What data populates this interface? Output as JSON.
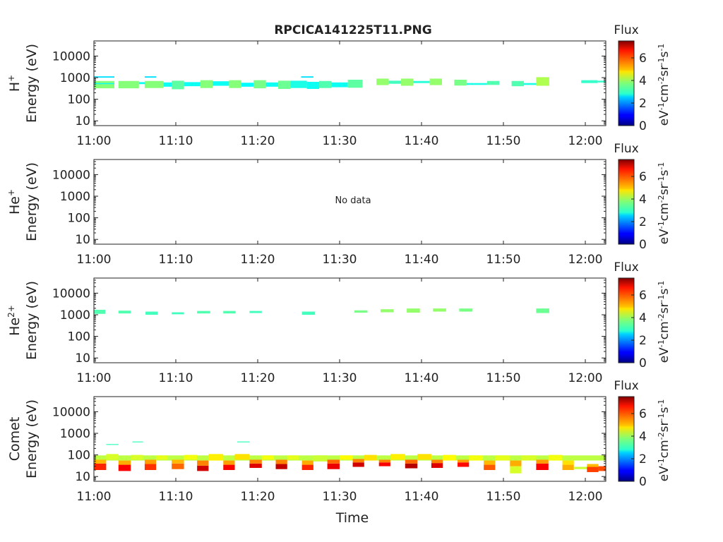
{
  "title": "RPCICA141225T11.PNG",
  "xlabel": "Time",
  "colorbar": {
    "title": "Flux",
    "label_parts": [
      "eV",
      "-1",
      "cm",
      "-2",
      "sr",
      "-1",
      "s",
      "-1"
    ],
    "ticks": [
      0,
      2,
      4,
      6
    ],
    "range": [
      0,
      7.5
    ],
    "colormap": "jet"
  },
  "chart_data": [
    {
      "type": "heatmap",
      "panel": "H+",
      "ylabel_species": "H",
      "ylabel_sup": "+",
      "ylabel_unit": "Energy (eV)",
      "x_ticks": [
        "11:00",
        "11:10",
        "11:20",
        "11:30",
        "11:40",
        "11:50",
        "12:00"
      ],
      "xlim_min": [
        0,
        62.5
      ],
      "y_ticks": [
        10,
        100,
        1000,
        10000
      ],
      "y_scale": "log",
      "ylim": [
        6,
        50000
      ],
      "no_data": false,
      "cells": [
        [
          0,
          2.5,
          320,
          700,
          3.8
        ],
        [
          0,
          2.5,
          500,
          560,
          2.9
        ],
        [
          0,
          2.5,
          1000,
          1150,
          2.6
        ],
        [
          3,
          5.5,
          320,
          700,
          3.8
        ],
        [
          5.5,
          8.5,
          500,
          620,
          2.9
        ],
        [
          6.2,
          7.6,
          1000,
          1150,
          2.6
        ],
        [
          6.2,
          8.5,
          330,
          700,
          3.8
        ],
        [
          8.5,
          11,
          380,
          600,
          2.9
        ],
        [
          9.5,
          11,
          290,
          720,
          3.5
        ],
        [
          11,
          13,
          400,
          620,
          2.9
        ],
        [
          13,
          14.5,
          330,
          760,
          3.8
        ],
        [
          14.5,
          16.5,
          420,
          680,
          2.9
        ],
        [
          16.5,
          18,
          330,
          760,
          3.8
        ],
        [
          18,
          19.5,
          380,
          580,
          2.8
        ],
        [
          19.5,
          21,
          320,
          760,
          3.7
        ],
        [
          21,
          22.5,
          380,
          600,
          2.9
        ],
        [
          22.5,
          24,
          300,
          720,
          3.6
        ],
        [
          24,
          26,
          330,
          720,
          3.0
        ],
        [
          25.3,
          26.8,
          1000,
          1150,
          2.6
        ],
        [
          26,
          27.5,
          300,
          640,
          2.9
        ],
        [
          27.5,
          29,
          330,
          700,
          3.4
        ],
        [
          29,
          31,
          360,
          600,
          2.9
        ],
        [
          31,
          32.8,
          340,
          800,
          3.5
        ],
        [
          34.5,
          36,
          450,
          900,
          3.9
        ],
        [
          36,
          37.5,
          520,
          720,
          3.3
        ],
        [
          37.5,
          39,
          420,
          900,
          3.9
        ],
        [
          39,
          41,
          560,
          700,
          3.1
        ],
        [
          41,
          42.5,
          450,
          900,
          3.9
        ],
        [
          44,
          45.5,
          430,
          800,
          3.7
        ],
        [
          45.5,
          48,
          460,
          560,
          3.0
        ],
        [
          48,
          49.5,
          460,
          700,
          3.4
        ],
        [
          51,
          52.5,
          400,
          700,
          3.4
        ],
        [
          52.5,
          54,
          460,
          560,
          3.0
        ],
        [
          54,
          55.6,
          420,
          1050,
          4.1
        ],
        [
          59.5,
          61.5,
          560,
          760,
          3.2
        ],
        [
          61.5,
          62.5,
          600,
          720,
          3.2
        ]
      ]
    },
    {
      "type": "heatmap",
      "panel": "He+",
      "ylabel_species": "He",
      "ylabel_sup": "+",
      "ylabel_unit": "Energy (eV)",
      "x_ticks": [
        "11:00",
        "11:10",
        "11:20",
        "11:30",
        "11:40",
        "11:50",
        "12:00"
      ],
      "xlim_min": [
        0,
        62.5
      ],
      "y_ticks": [
        10,
        100,
        1000,
        10000
      ],
      "y_scale": "log",
      "ylim": [
        6,
        50000
      ],
      "no_data": true,
      "no_data_text": "No data",
      "cells": []
    },
    {
      "type": "heatmap",
      "panel": "He2+",
      "ylabel_species": "He",
      "ylabel_sup": "2+",
      "ylabel_unit": "Energy (eV)",
      "x_ticks": [
        "11:00",
        "11:10",
        "11:20",
        "11:30",
        "11:40",
        "11:50",
        "12:00"
      ],
      "xlim_min": [
        0,
        62.5
      ],
      "y_ticks": [
        10,
        100,
        1000,
        10000
      ],
      "y_scale": "log",
      "ylim": [
        6,
        50000
      ],
      "no_data": false,
      "cells": [
        [
          0,
          1.4,
          1100,
          1700,
          3.4
        ],
        [
          3,
          4.5,
          1150,
          1550,
          3.4
        ],
        [
          6.3,
          7.8,
          1000,
          1400,
          3.3
        ],
        [
          9.5,
          11,
          1050,
          1300,
          3.3
        ],
        [
          12.6,
          14.2,
          1150,
          1500,
          3.4
        ],
        [
          15.8,
          17.3,
          1150,
          1500,
          3.4
        ],
        [
          19,
          20.5,
          1200,
          1500,
          3.3
        ],
        [
          25.4,
          27,
          1000,
          1400,
          3.3
        ],
        [
          31.8,
          33.4,
          1250,
          1600,
          3.7
        ],
        [
          35,
          36.6,
          1300,
          1800,
          3.9
        ],
        [
          38.2,
          39.8,
          1250,
          1950,
          3.9
        ],
        [
          41.4,
          43,
          1400,
          1950,
          3.9
        ],
        [
          44.6,
          46.2,
          1400,
          1950,
          3.7
        ],
        [
          54,
          55.6,
          1200,
          1950,
          3.6
        ]
      ]
    },
    {
      "type": "heatmap",
      "panel": "Comet",
      "ylabel_species": "Comet",
      "ylabel_sup": "",
      "ylabel_unit": "Energy (eV)",
      "x_ticks": [
        "11:00",
        "11:10",
        "11:20",
        "11:30",
        "11:40",
        "11:50",
        "12:00"
      ],
      "xlim_min": [
        0,
        62.5
      ],
      "y_ticks": [
        10,
        100,
        1000,
        10000
      ],
      "y_scale": "log",
      "ylim": [
        6,
        50000
      ],
      "no_data": false,
      "cells": [
        [
          0,
          62.5,
          55,
          95,
          4.2
        ],
        [
          1.5,
          3,
          290,
          320,
          3.3
        ],
        [
          4.7,
          6,
          380,
          420,
          3.3
        ],
        [
          17.5,
          19,
          380,
          420,
          3.3
        ],
        [
          0,
          1.5,
          20,
          40,
          6.3
        ],
        [
          0,
          1.5,
          40,
          60,
          5.2
        ],
        [
          1.5,
          3,
          60,
          110,
          4.4
        ],
        [
          3,
          4.5,
          18,
          35,
          6.6
        ],
        [
          3,
          4.5,
          35,
          55,
          5.3
        ],
        [
          4.5,
          6,
          60,
          100,
          4.4
        ],
        [
          6.2,
          7.6,
          20,
          38,
          6.2
        ],
        [
          6.2,
          7.6,
          38,
          60,
          5.4
        ],
        [
          7.6,
          9,
          60,
          95,
          4.5
        ],
        [
          9.5,
          11,
          22,
          40,
          5.8
        ],
        [
          9.5,
          11,
          40,
          60,
          5.2
        ],
        [
          11,
          12.6,
          60,
          100,
          4.6
        ],
        [
          12.6,
          14,
          18,
          32,
          6.9
        ],
        [
          12.6,
          14,
          32,
          55,
          5.6
        ],
        [
          14,
          15.8,
          55,
          110,
          4.8
        ],
        [
          15.8,
          17.2,
          20,
          35,
          6.6
        ],
        [
          15.8,
          17.2,
          35,
          55,
          5.4
        ],
        [
          17.2,
          19,
          60,
          110,
          4.9
        ],
        [
          19,
          20.5,
          25,
          40,
          6.8
        ],
        [
          19,
          20.5,
          40,
          60,
          5.6
        ],
        [
          20.5,
          22,
          60,
          95,
          4.6
        ],
        [
          22.2,
          23.6,
          22,
          38,
          7.0
        ],
        [
          22.2,
          23.6,
          38,
          60,
          5.6
        ],
        [
          23.6,
          25,
          60,
          95,
          4.5
        ],
        [
          25.4,
          26.8,
          20,
          35,
          6.3
        ],
        [
          25.4,
          26.8,
          35,
          55,
          5.3
        ],
        [
          26.8,
          28.5,
          50,
          95,
          4.3
        ],
        [
          28.5,
          30,
          22,
          40,
          6.7
        ],
        [
          28.5,
          30,
          40,
          60,
          5.8
        ],
        [
          30,
          31.6,
          60,
          95,
          4.7
        ],
        [
          31.6,
          33,
          28,
          45,
          6.9
        ],
        [
          31.6,
          33,
          45,
          65,
          5.6
        ],
        [
          33,
          34.5,
          55,
          100,
          4.9
        ],
        [
          34.8,
          36.2,
          30,
          45,
          6.6
        ],
        [
          34.8,
          36.2,
          45,
          60,
          5.6
        ],
        [
          36.2,
          38,
          60,
          110,
          4.8
        ],
        [
          38,
          39.5,
          24,
          40,
          7.1
        ],
        [
          38,
          39.5,
          40,
          60,
          5.8
        ],
        [
          39.5,
          41.2,
          60,
          110,
          4.9
        ],
        [
          41.2,
          42.6,
          25,
          42,
          6.8
        ],
        [
          41.2,
          42.6,
          42,
          60,
          5.6
        ],
        [
          42.6,
          44.2,
          55,
          100,
          4.7
        ],
        [
          44.4,
          45.8,
          28,
          45,
          6.5
        ],
        [
          44.4,
          45.8,
          45,
          60,
          5.4
        ],
        [
          45.8,
          47.5,
          55,
          95,
          4.6
        ],
        [
          47.6,
          49,
          20,
          35,
          5.9
        ],
        [
          47.6,
          49,
          35,
          55,
          5.2
        ],
        [
          49,
          50.8,
          55,
          95,
          4.5
        ],
        [
          50.8,
          52.2,
          14,
          30,
          4.4
        ],
        [
          50.8,
          52.2,
          30,
          55,
          5.3
        ],
        [
          52.2,
          54,
          55,
          95,
          4.4
        ],
        [
          54,
          55.5,
          20,
          40,
          6.6
        ],
        [
          54,
          55.5,
          40,
          60,
          5.4
        ],
        [
          55.5,
          57.2,
          55,
          100,
          4.6
        ],
        [
          57.2,
          58.6,
          20,
          35,
          5.3
        ],
        [
          57.2,
          58.6,
          35,
          55,
          4.9
        ],
        [
          58.6,
          60.2,
          22,
          28,
          4.3
        ],
        [
          60.2,
          61.6,
          16,
          28,
          6.1
        ],
        [
          60.2,
          61.6,
          28,
          38,
          5.2
        ],
        [
          61.6,
          62.5,
          18,
          30,
          6.0
        ]
      ]
    }
  ]
}
